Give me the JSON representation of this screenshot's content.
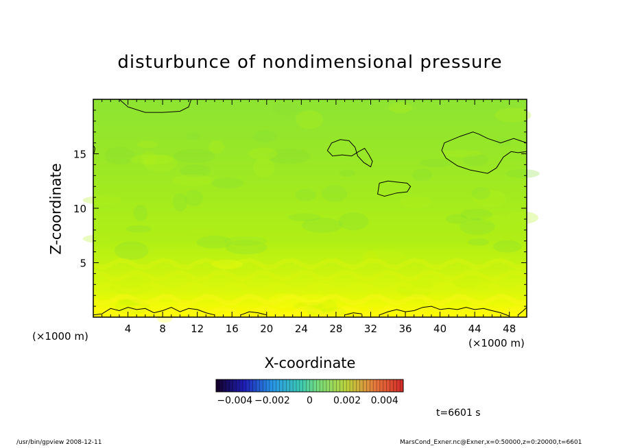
{
  "chart_data": {
    "type": "heatmap",
    "title": "disturbunce of nondimensional pressure",
    "xlabel": "X-coordinate",
    "ylabel": "Z-coordinate",
    "x_unit": "(×1000 m)",
    "z_unit": "(×1000 m)",
    "xlim": [
      0,
      50
    ],
    "ylim": [
      0,
      20
    ],
    "x_ticks": [
      "4",
      "8",
      "12",
      "16",
      "20",
      "24",
      "28",
      "32",
      "36",
      "40",
      "44",
      "48"
    ],
    "y_ticks": [
      "5",
      "10",
      "15"
    ],
    "x_tick_values": [
      4,
      8,
      12,
      16,
      20,
      24,
      28,
      32,
      36,
      40,
      44,
      48
    ],
    "y_tick_values": [
      5,
      10,
      15
    ],
    "colorbar": {
      "range": [
        -0.005,
        0.005
      ],
      "tick_values": [
        -0.004,
        -0.002,
        0,
        0.002,
        0.004
      ],
      "tick_labels": [
        "−0.004",
        "−0.002",
        "0",
        "0.002",
        "0.004"
      ]
    },
    "field_value_range": [
      0.0,
      0.003
    ],
    "field_description_levels": [
      {
        "z": 0,
        "value": 0.003
      },
      {
        "z": 3,
        "value": 0.0022
      },
      {
        "z": 7,
        "value": 0.0013
      },
      {
        "z": 12,
        "value": 0.0009
      },
      {
        "z": 20,
        "value": 0.0006
      }
    ],
    "contour_level": 0,
    "time_label": "t=6601 s",
    "colors": {
      "bottom": "#fffb00",
      "middle": "#a8ee18",
      "top": "#86e23a",
      "contour": "#000000"
    }
  },
  "footer": {
    "left": "/usr/bin/gpview   2008-12-11",
    "right": "MarsCond_Exner.nc@Exner,x=0:50000,z=0:20000,t=6601"
  }
}
